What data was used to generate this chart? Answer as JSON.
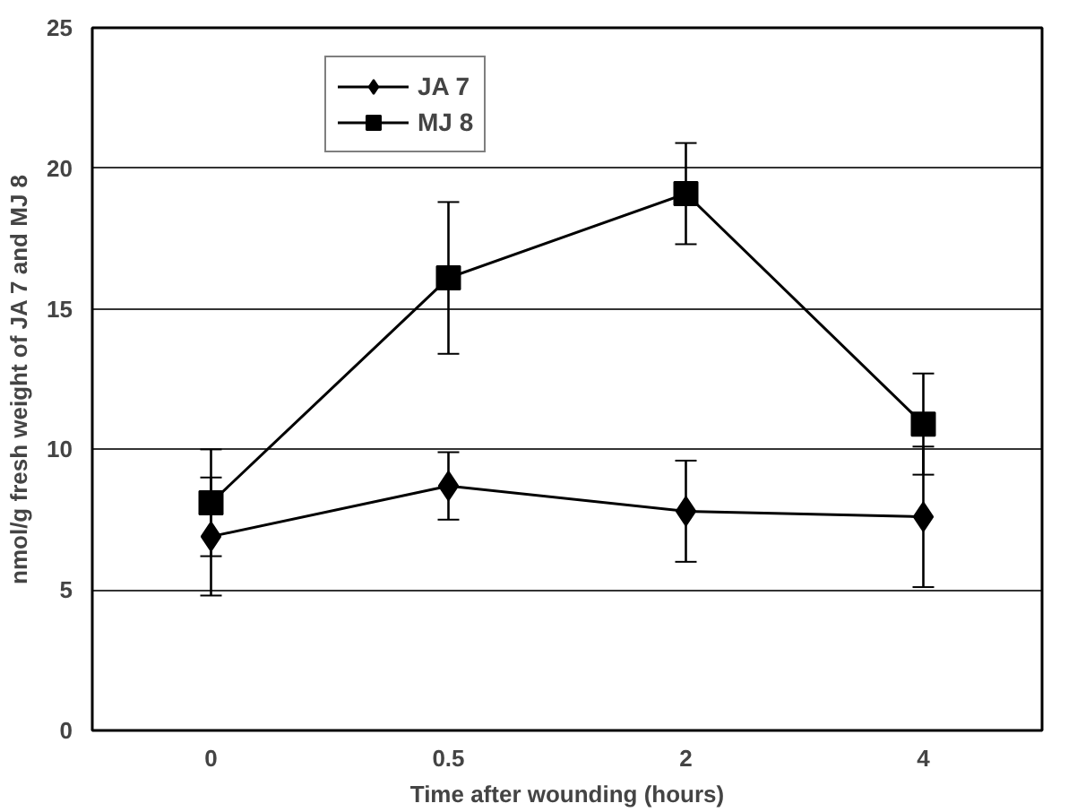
{
  "chart_data": {
    "type": "line",
    "xlabel": "Time after wounding (hours)",
    "ylabel": "nmol/g fresh weight of JA 7 and MJ 8",
    "categories": [
      "0",
      "0.5",
      "2",
      "4"
    ],
    "series": [
      {
        "name": "JA 7",
        "color": "#000000",
        "marker": "diamond",
        "values": [
          6.9,
          8.7,
          7.8,
          7.6
        ],
        "errors": [
          2.1,
          1.2,
          1.8,
          2.5
        ]
      },
      {
        "name": "MJ 8",
        "color": "#000000",
        "marker": "square",
        "values": [
          8.1,
          16.1,
          19.1,
          10.9
        ],
        "errors": [
          1.9,
          2.7,
          1.8,
          1.8
        ]
      }
    ],
    "ylim": [
      0,
      25
    ],
    "yticks": [
      0,
      5,
      10,
      15,
      20,
      25
    ],
    "grid": "y",
    "legend": "top left",
    "line_style": "solid"
  }
}
